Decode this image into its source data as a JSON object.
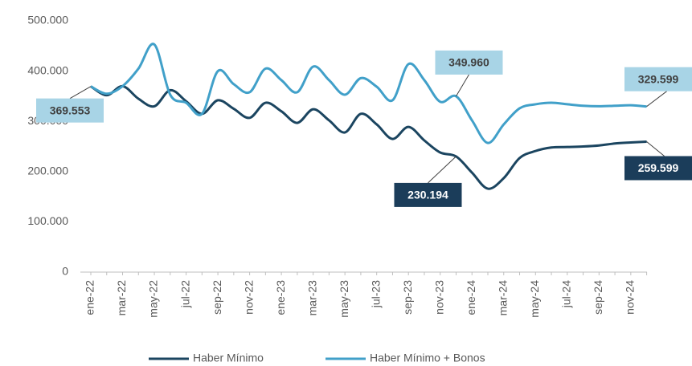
{
  "chart_data": {
    "type": "line",
    "categories": [
      "ene-22",
      null,
      "mar-22",
      null,
      "may-22",
      null,
      "jul-22",
      null,
      "sep-22",
      null,
      "nov-22",
      null,
      "ene-23",
      null,
      "mar-23",
      null,
      "may-23",
      null,
      "jul-23",
      null,
      "sep-23",
      null,
      "nov-23",
      null,
      "ene-24",
      null,
      "mar-24",
      null,
      "may-24",
      null,
      "jul-24",
      null,
      "sep-24",
      null,
      "nov-24",
      null
    ],
    "series": [
      {
        "name": "Haber Mínimo",
        "color": "#1b4560",
        "values": [
          369553,
          352000,
          370000,
          345000,
          330000,
          362000,
          340000,
          315000,
          342000,
          325000,
          307000,
          337000,
          320000,
          297000,
          324000,
          302000,
          278000,
          315000,
          294000,
          265000,
          289000,
          262000,
          238000,
          230194,
          198000,
          166000,
          187000,
          227000,
          241000,
          248000,
          249000,
          250000,
          252000,
          256000,
          258000,
          259599
        ],
        "value_labels": [
          null,
          null,
          null,
          null,
          null,
          null,
          null,
          null,
          null,
          null,
          null,
          null,
          null,
          null,
          null,
          null,
          null,
          null,
          null,
          null,
          null,
          null,
          null,
          "230.194",
          null,
          null,
          null,
          null,
          null,
          null,
          null,
          null,
          null,
          null,
          null,
          "259.599"
        ]
      },
      {
        "name": "Haber Mínimo + Bonos",
        "color": "#41a0c9",
        "values": [
          369553,
          355000,
          370000,
          405000,
          453000,
          353000,
          337000,
          315000,
          400000,
          374000,
          358000,
          405000,
          382000,
          358000,
          409000,
          382000,
          353000,
          386000,
          369000,
          342000,
          414000,
          382000,
          339000,
          349960,
          302000,
          257000,
          294000,
          326000,
          334000,
          337000,
          334000,
          331000,
          330000,
          331000,
          332000,
          329599
        ],
        "value_labels": [
          "369.553",
          null,
          null,
          null,
          null,
          null,
          null,
          null,
          null,
          null,
          null,
          null,
          null,
          null,
          null,
          null,
          null,
          null,
          null,
          null,
          null,
          null,
          null,
          "349.960",
          null,
          null,
          null,
          null,
          null,
          null,
          null,
          null,
          null,
          null,
          null,
          "329.599"
        ]
      }
    ],
    "ylim": [
      0,
      500000
    ],
    "yticks": [
      0,
      {
        "value": 100000,
        "label": "100.000"
      },
      {
        "value": 200000,
        "label": "200.000"
      },
      {
        "value": 300000,
        "label": "300.000"
      },
      {
        "value": 400000,
        "label": "400.000"
      },
      {
        "value": 500000,
        "label": "500.000"
      }
    ],
    "grid": false,
    "legend": "bottom"
  }
}
